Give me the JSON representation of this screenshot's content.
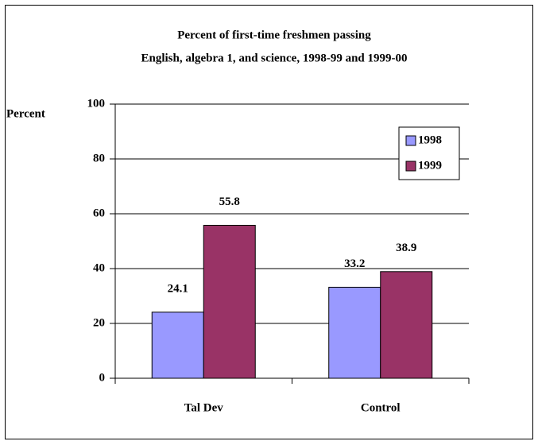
{
  "chart_data": {
    "type": "bar",
    "title": [
      "Percent of first-time freshmen passing",
      "English, algebra 1, and science, 1998-99 and 1999-00"
    ],
    "y_label": "Percent",
    "categories": [
      "Tal Dev",
      "Control"
    ],
    "series": [
      {
        "name": "1998",
        "color": "#9999ff",
        "values": [
          24.1,
          33.2
        ]
      },
      {
        "name": "1999",
        "color": "#993366",
        "values": [
          55.8,
          38.9
        ]
      }
    ],
    "ylim": [
      0,
      100
    ],
    "yticks": [
      0,
      20,
      40,
      60,
      80,
      100
    ],
    "grid": true,
    "legend": "upper right"
  }
}
